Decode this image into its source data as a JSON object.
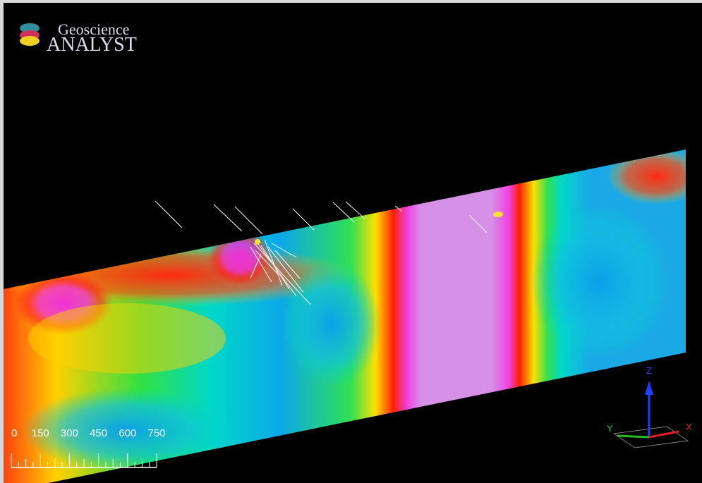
{
  "logo": {
    "title": "Geoscience",
    "subtitle": "ANALYST"
  },
  "scale_bar": {
    "labels": [
      0,
      150,
      300,
      450,
      600,
      750
    ]
  },
  "axes": {
    "x": "X",
    "y": "Y",
    "z": "Z"
  }
}
